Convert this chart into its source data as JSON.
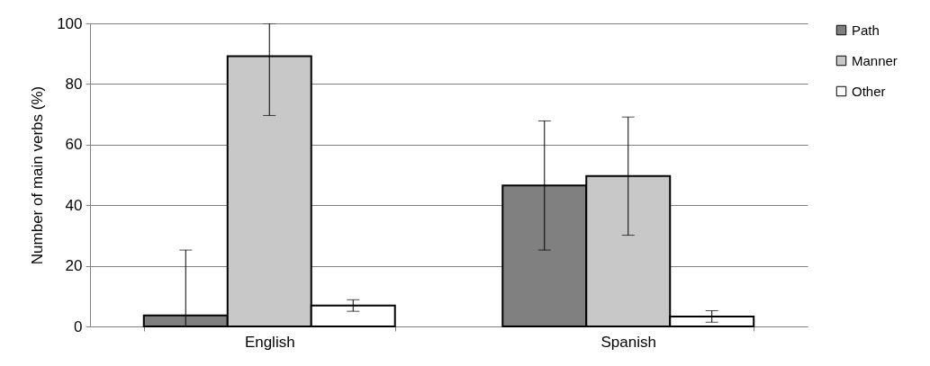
{
  "chart_data": {
    "type": "bar",
    "ylabel": "Number  of main verbs (%)",
    "categories": [
      "English",
      "Spanish"
    ],
    "series": [
      {
        "name": "Path",
        "color": "#808080",
        "values": [
          3.6,
          46.5
        ],
        "errors": [
          [
            0,
            25.2
          ],
          21.3
        ]
      },
      {
        "name": "Manner",
        "color": "#c8c8c8",
        "values": [
          89.2,
          49.6
        ],
        "errors": [
          [
            69.6,
            100
          ],
          19.5
        ]
      },
      {
        "name": "Other",
        "color": "#ffffff",
        "values": [
          6.9,
          3.3
        ],
        "errors": [
          1.9,
          1.9
        ]
      }
    ],
    "ylim": [
      0,
      100
    ],
    "yticks": [
      0,
      20,
      40,
      60,
      80,
      100
    ],
    "grid": "y",
    "legend": "right"
  }
}
